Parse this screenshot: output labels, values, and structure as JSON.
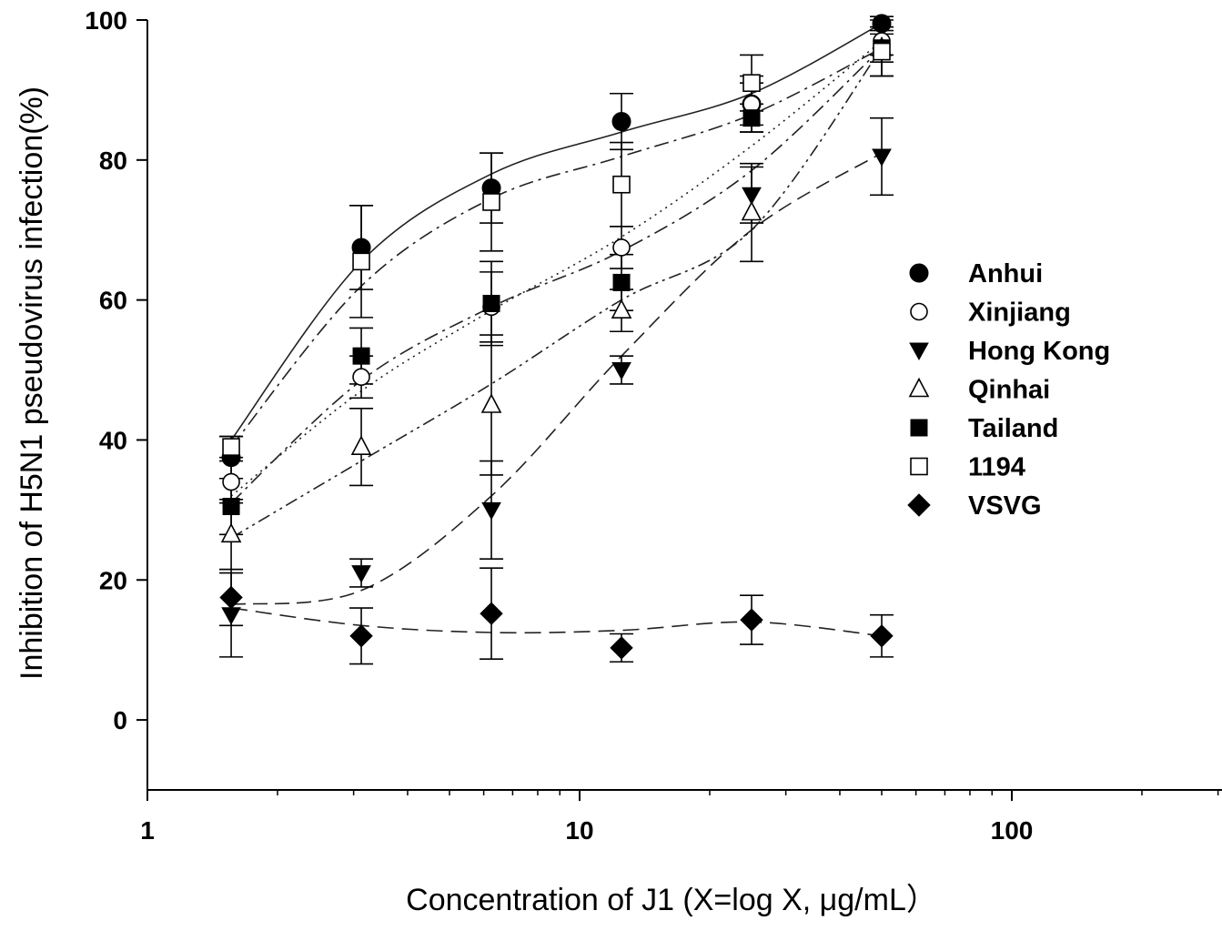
{
  "chart_data": {
    "type": "scatter",
    "title": "",
    "xlabel": "Concentration of J1 (X=log X, μg/mL）",
    "ylabel": "Inhibition of H5N1 pseudovirus infection(%)",
    "xscale": "log",
    "xlim": [
      1,
      300
    ],
    "ylim": [
      -10,
      100
    ],
    "xticks": [
      1,
      10,
      100
    ],
    "xtick_labels": [
      "1",
      "10",
      "100"
    ],
    "yticks": [
      0,
      20,
      40,
      60,
      80,
      100
    ],
    "ytick_labels": [
      "0",
      "20",
      "40",
      "60",
      "80",
      "100"
    ],
    "legend_position": "right",
    "x": [
      1.5625,
      3.125,
      6.25,
      12.5,
      25,
      50
    ],
    "series": [
      {
        "name": "Anhui",
        "marker": "filled-circle",
        "dash": "solid",
        "values": [
          37.5,
          67.5,
          76,
          85.5,
          88,
          99.5
        ],
        "errors": [
          3,
          6,
          5,
          4,
          4,
          1
        ]
      },
      {
        "name": "Xinjiang",
        "marker": "open-circle",
        "dash": "dot",
        "values": [
          34,
          49,
          59,
          67.5,
          88,
          97
        ],
        "errors": [
          3,
          3,
          5,
          3,
          3,
          2
        ]
      },
      {
        "name": "Hong Kong",
        "marker": "filled-triangle-down",
        "dash": "long-dash",
        "values": [
          15,
          21,
          30,
          50,
          75,
          80.5
        ],
        "errors": [
          6,
          2,
          7,
          2,
          4,
          5.5
        ]
      },
      {
        "name": "Qinhai",
        "marker": "open-triangle-up",
        "dash": "dash-dot-dot",
        "values": [
          26.5,
          39,
          45,
          58.5,
          72.5,
          96
        ],
        "errors": [
          5,
          5.5,
          10,
          3,
          7,
          4
        ]
      },
      {
        "name": "Tailand",
        "marker": "filled-square",
        "dash": "dash-dot",
        "values": [
          30.5,
          52,
          59.5,
          62.5,
          86,
          96
        ],
        "errors": [
          4,
          4,
          6,
          4,
          2,
          2
        ]
      },
      {
        "name": "1194",
        "marker": "open-square",
        "dash": "dash-dot",
        "values": [
          39,
          65.5,
          74,
          76.5,
          91,
          95.5
        ],
        "errors": [
          1.5,
          8,
          7,
          6,
          4,
          3.5
        ]
      },
      {
        "name": "VSVG",
        "marker": "filled-diamond",
        "dash": "dash",
        "values": [
          17.5,
          12,
          15.2,
          10.3,
          14.3,
          12
        ],
        "errors": [
          4,
          4,
          6.5,
          2,
          3.5,
          3
        ]
      }
    ],
    "fit_curves": [
      {
        "series": "Anhui",
        "dash": "solid",
        "y": [
          40,
          65.5,
          78,
          84,
          89.5,
          99.5
        ]
      },
      {
        "series": "Xinjiang",
        "dash": "dot",
        "y": [
          32,
          47,
          58.5,
          69,
          82,
          97
        ]
      },
      {
        "series": "Hong Kong",
        "dash": "long-dash",
        "y": [
          16.5,
          18.5,
          32,
          52,
          70,
          81
        ]
      },
      {
        "series": "Qinhai",
        "dash": "dash-dot-dot",
        "y": [
          26,
          37,
          48,
          60,
          70,
          96
        ]
      },
      {
        "series": "Tailand",
        "dash": "dash-dot",
        "y": [
          31,
          48.5,
          59,
          67,
          78.5,
          96
        ]
      },
      {
        "series": "1194",
        "dash": "dash-dot",
        "y": [
          39,
          62,
          74.5,
          80.5,
          86.5,
          96
        ]
      },
      {
        "series": "VSVG",
        "dash": "dash",
        "y": [
          16,
          13.5,
          12.5,
          12.8,
          14,
          12
        ]
      }
    ]
  }
}
